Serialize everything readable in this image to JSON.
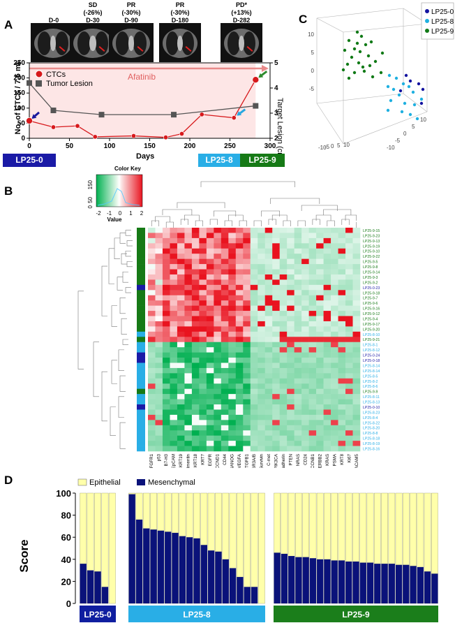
{
  "panels": {
    "a": "A",
    "b": "B",
    "c": "C",
    "d": "D"
  },
  "panel_a": {
    "scans": [
      {
        "lines": [
          "D-0"
        ]
      },
      {
        "lines": [
          "SD",
          "(-26%)",
          "D-30"
        ]
      },
      {
        "lines": [
          "PR",
          "(-30%)",
          "D-90"
        ]
      },
      {
        "lines": [
          "PR",
          "(-30%)",
          "D-180"
        ]
      },
      {
        "lines": [
          "PD*",
          "(+13%)",
          "D-282"
        ]
      }
    ],
    "drug_label": "Afatinib",
    "legend": {
      "ctc": "CTCs",
      "tumor": "Tumor Lesion"
    },
    "ylabel_left": "No. of CTCs / 7.5 mL",
    "ylabel_right": "Target Lesion (cm)",
    "xlabel": "Days",
    "colors": {
      "ctc": "#d7191c",
      "tumor": "#555555",
      "band": "#fde6e6",
      "arrow_blue": "#1a1a9e",
      "arrow_cyan": "#29a8e0",
      "arrow_green": "#2e8b2e"
    },
    "xticks": [
      "0",
      "50",
      "100",
      "150",
      "200",
      "250",
      "300"
    ],
    "yticks_left": [
      "0",
      "50",
      "100",
      "150",
      "200",
      "250"
    ],
    "yticks_right": [
      "2",
      "3",
      "4",
      "5"
    ],
    "sample_labels": [
      {
        "text": "LP25-0",
        "color": "#1a1aa6"
      },
      {
        "text": "LP25-8",
        "color": "#29aee6"
      },
      {
        "text": "LP25-9",
        "color": "#167a16"
      }
    ]
  },
  "panel_b": {
    "color_key": {
      "title": "Color Key",
      "xlabel": "Value",
      "ticks": [
        "-2",
        "-1",
        "0",
        "1",
        "2"
      ],
      "hist_ticks": [
        "0",
        "50",
        "150"
      ]
    },
    "genes": [
      "FGFR1",
      "p53",
      "B7-H3",
      "EpCAM",
      "KRT19",
      "Vimentin",
      "KRT18",
      "KRT7",
      "EGFR",
      "CCND1",
      "CD44",
      "NANOG",
      "VEGFA",
      "TGFB1",
      "FCGR3A/B",
      "Survivin",
      "C-met",
      "PIK3CA",
      "E-cadherin",
      "PTEN",
      "NRAS",
      "CD24",
      "CCNB1",
      "ERBB2",
      "KRAS",
      "PSMA",
      "KRT8",
      "Ki67",
      "CEACAM5"
    ],
    "samples": [
      "LP25-9-15",
      "LP25-9-23",
      "LP25-9-13",
      "LP25-9-19",
      "LP25-9-10",
      "LP25-9-22",
      "LP25-9-5",
      "LP25-9-8",
      "LP25-9-14",
      "LP25-9-3",
      "LP25-9-2",
      "LP25-0-23",
      "LP25-9-18",
      "LP25-9-7",
      "LP25-9-6",
      "LP25-9-16",
      "LP25-9-12",
      "LP25-9-4",
      "LP25-9-17",
      "LP25-9-20",
      "LP25-8-10",
      "LP25-9-21",
      "LP25-8-1",
      "LP25-8-12",
      "LP25-0-24",
      "LP25-0-18",
      "LP25-8-14",
      "LP25-8-14",
      "LP25-8-5",
      "LP25-8-2",
      "LP25-8-6",
      "LP25-9-9",
      "LP25-8-11",
      "LP25-8-13",
      "LP25-0-10",
      "LP25-8-23",
      "LP25-8-4",
      "LP25-8-22",
      "LP25-8-20",
      "LP25-8-8",
      "LP25-8-18",
      "LP25-8-19",
      "LP25-8-16"
    ],
    "sample_colors": {
      "LP25-0": "#1a1aa6",
      "LP25-8": "#29aee6",
      "LP25-9": "#167a16"
    }
  },
  "panel_c": {
    "legend": [
      {
        "label": "LP25-0",
        "color": "#1414a0"
      },
      {
        "label": "LP25-8",
        "color": "#1fb0e0"
      },
      {
        "label": "LP25-9",
        "color": "#117a17"
      }
    ],
    "z_ticks": [
      "10",
      "5",
      "0",
      "-5"
    ],
    "x_ticks": [
      "-10",
      "-5",
      "0",
      "5",
      "10"
    ],
    "y_ticks": [
      "-10",
      "-5",
      "0",
      "5",
      "10"
    ]
  },
  "panel_d": {
    "legend": {
      "epithelial": "Epithelial",
      "mesenchymal": "Mesenchymal"
    },
    "colors": {
      "epithelial": "#ffffaa",
      "mesenchymal": "#0a127a"
    },
    "ylabel": "Score",
    "yticks": [
      "0",
      "20",
      "40",
      "60",
      "80",
      "100"
    ],
    "groups": [
      {
        "label": "LP25-0",
        "color": "#0f1ea0"
      },
      {
        "label": "LP25-8",
        "color": "#29aee6"
      },
      {
        "label": "LP25-9",
        "color": "#1b7e1b"
      }
    ]
  },
  "chart_data": [
    {
      "type": "line",
      "title": "",
      "xlabel": "Days",
      "ylabel": "No. of CTCs / 7.5 mL",
      "y2label": "Target Lesion (cm)",
      "xlim": [
        0,
        300
      ],
      "ylim": [
        0,
        250
      ],
      "y2lim": [
        2,
        5
      ],
      "series": [
        {
          "name": "CTCs",
          "axis": "left",
          "x": [
            0,
            30,
            60,
            82,
            130,
            170,
            190,
            215,
            255,
            282
          ],
          "values": [
            58,
            37,
            41,
            5,
            8,
            3,
            15,
            79,
            68,
            194
          ]
        },
        {
          "name": "Tumor Lesion",
          "axis": "right",
          "x": [
            0,
            30,
            90,
            180,
            282
          ],
          "values": [
            4.2,
            3.11,
            2.94,
            2.94,
            3.29
          ]
        }
      ],
      "annotations": [
        "Afatinib",
        "D-0",
        "D-30",
        "D-90",
        "D-180",
        "D-282"
      ]
    },
    {
      "type": "bar",
      "stacked": true,
      "title": "",
      "ylabel": "Score",
      "ylim": [
        0,
        100
      ],
      "series_names": [
        "Mesenchymal",
        "Epithelial"
      ],
      "groups": [
        {
          "name": "LP25-0",
          "mesenchymal": [
            36,
            30,
            29,
            15,
            0
          ]
        },
        {
          "name": "LP25-8",
          "mesenchymal": [
            99,
            76,
            68,
            67,
            66,
            65,
            64,
            61,
            60,
            59,
            53,
            48,
            47,
            40,
            32,
            24,
            15,
            15,
            0
          ]
        },
        {
          "name": "LP25-9",
          "mesenchymal": [
            46,
            45,
            43,
            42,
            42,
            41,
            40,
            40,
            39,
            39,
            38,
            38,
            37,
            37,
            36,
            36,
            36,
            35,
            35,
            34,
            33,
            29,
            27
          ]
        }
      ]
    }
  ]
}
